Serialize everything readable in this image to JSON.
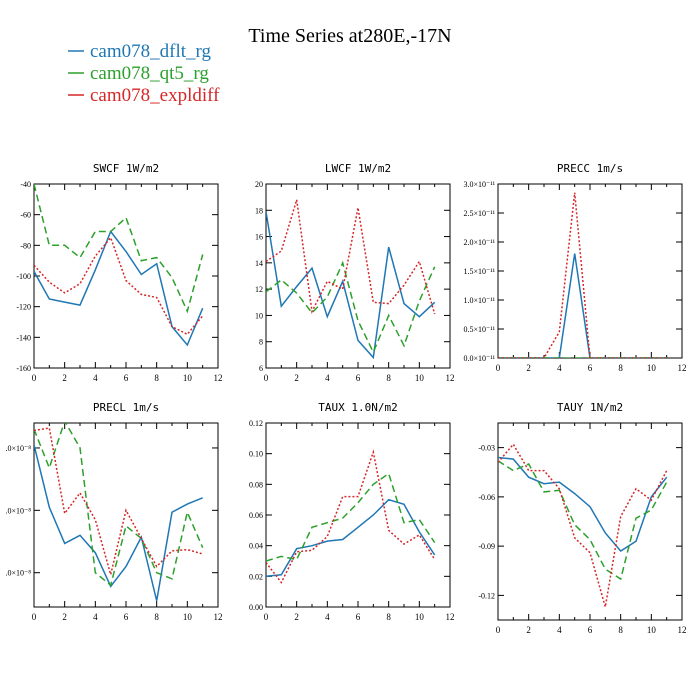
{
  "figure": {
    "title": "Time Series at280E,-17N",
    "legend": [
      {
        "label": "cam078_dflt_rg",
        "color": "#1f77b4",
        "dash": "solid"
      },
      {
        "label": "cam078_qt5_rg",
        "color": "#2ca02c",
        "dash": "dashed"
      },
      {
        "label": "cam078_expldiff",
        "color": "#d62728",
        "dash": "dotted"
      }
    ]
  },
  "chart_data": [
    {
      "type": "line",
      "title": "SWCF  1W/m2",
      "x": [
        0,
        1,
        2,
        3,
        4,
        5,
        6,
        7,
        8,
        9,
        10,
        11
      ],
      "xlim": [
        0,
        12
      ],
      "ylim": [
        -160,
        -40
      ],
      "xticks": [
        0,
        2,
        4,
        6,
        8,
        10,
        12
      ],
      "yticks": [
        -160,
        -140,
        -120,
        -100,
        -80,
        -60,
        -40
      ],
      "yticklabels": [
        "-160",
        "-140",
        "-120",
        "-100",
        "-80",
        "-60",
        "-40"
      ],
      "series": [
        {
          "name": "cam078_dflt_rg",
          "values": [
            -97,
            -115,
            -117,
            -119,
            -96,
            -71,
            -84,
            -99,
            -92,
            -133,
            -145,
            -121
          ]
        },
        {
          "name": "cam078_qt5_rg",
          "values": [
            -40,
            -80,
            -80,
            -88,
            -71,
            -71,
            -62,
            -90,
            -88,
            -101,
            -123,
            -86
          ]
        },
        {
          "name": "cam078_expldiff",
          "values": [
            -93,
            -104,
            -111,
            -105,
            -87,
            -75,
            -103,
            -112,
            -114,
            -133,
            -138,
            -126
          ]
        }
      ]
    },
    {
      "type": "line",
      "title": "LWCF  1W/m2",
      "x": [
        0,
        1,
        2,
        3,
        4,
        5,
        6,
        7,
        8,
        9,
        10,
        11
      ],
      "xlim": [
        0,
        12
      ],
      "ylim": [
        6,
        20
      ],
      "xticks": [
        0,
        2,
        4,
        6,
        8,
        10,
        12
      ],
      "yticks": [
        6,
        8,
        10,
        12,
        14,
        16,
        18,
        20
      ],
      "yticklabels": [
        "6",
        "8",
        "10",
        "12",
        "14",
        "16",
        "18",
        "20"
      ],
      "series": [
        {
          "name": "cam078_dflt_rg",
          "values": [
            17.9,
            10.7,
            12.2,
            13.6,
            9.9,
            12.6,
            8.1,
            6.8,
            15.2,
            10.9,
            9.9,
            11
          ]
        },
        {
          "name": "cam078_qt5_rg",
          "values": [
            11.8,
            12.7,
            11.7,
            10.2,
            11.4,
            14,
            9.6,
            7.2,
            10,
            7.7,
            11.1,
            13.7
          ]
        },
        {
          "name": "cam078_expldiff",
          "values": [
            14.1,
            14.9,
            18.8,
            10.3,
            12.6,
            12,
            18.2,
            11,
            10.9,
            12.3,
            14.1,
            10.1
          ]
        }
      ]
    },
    {
      "type": "line",
      "title": "PRECC  1m/s",
      "x": [
        0,
        1,
        2,
        3,
        4,
        5,
        6,
        7,
        8,
        9,
        10,
        11
      ],
      "xlim": [
        0,
        12
      ],
      "ylim": [
        0,
        3e-11
      ],
      "xticks": [
        0,
        2,
        4,
        6,
        8,
        10,
        12
      ],
      "yticks": [
        0,
        5e-12,
        1e-11,
        1.5e-11,
        2e-11,
        2.5e-11,
        3e-11
      ],
      "yticklabels": [
        "0.0×10⁻¹¹",
        "0.5×10⁻¹¹",
        "1.0×10⁻¹¹",
        "1.5×10⁻¹¹",
        "2.0×10⁻¹¹",
        "2.5×10⁻¹¹",
        "3.0×10⁻¹¹"
      ],
      "series": [
        {
          "name": "cam078_dflt_rg",
          "values": [
            0,
            0,
            0,
            0,
            0,
            1.8e-11,
            0,
            0,
            0,
            0,
            0,
            0
          ]
        },
        {
          "name": "cam078_qt5_rg",
          "values": [
            0,
            0,
            0,
            0,
            0,
            0,
            0,
            0,
            0,
            0,
            0,
            0
          ]
        },
        {
          "name": "cam078_expldiff",
          "values": [
            0,
            0,
            0,
            0,
            4.5e-12,
            2.85e-11,
            0,
            0,
            0,
            0,
            0,
            0
          ]
        }
      ]
    },
    {
      "type": "line",
      "title": "PRECL  1m/s",
      "x": [
        0,
        1,
        2,
        3,
        4,
        5,
        6,
        7,
        8,
        9,
        10,
        11
      ],
      "xlim": [
        0,
        12
      ],
      "ylim": [
        4.5e-09,
        3.4e-08
      ],
      "xticks": [
        0,
        2,
        4,
        6,
        8,
        10,
        12
      ],
      "yticks": [
        1e-08,
        2e-08,
        3e-08
      ],
      "yticklabels": [
        ".0×10⁻⁸",
        ".0×10⁻⁸",
        ".0×10⁻⁸"
      ],
      "series": [
        {
          "name": "cam078_dflt_rg",
          "values": [
            3.05e-08,
            2.05e-08,
            1.47e-08,
            1.6e-08,
            1.32e-08,
            7.8e-09,
            1.1e-08,
            1.57e-08,
            5.5e-09,
            1.97e-08,
            2.1e-08,
            2.2e-08
          ]
        },
        {
          "name": "cam078_qt5_rg",
          "values": [
            3.3e-08,
            2.68e-08,
            3.43e-08,
            3e-08,
            1e-08,
            8e-09,
            1.75e-08,
            1.55e-08,
            1e-08,
            9e-09,
            1.97e-08,
            1.4e-08
          ]
        },
        {
          "name": "cam078_expldiff",
          "values": [
            3.28e-08,
            3.32e-08,
            1.95e-08,
            2.28e-08,
            1.85e-08,
            9.7e-09,
            2e-08,
            1.55e-08,
            1.1e-08,
            1.35e-08,
            1.37e-08,
            1.3e-08
          ]
        }
      ]
    },
    {
      "type": "line",
      "title": "TAUX  1.0N/m2",
      "x": [
        0,
        1,
        2,
        3,
        4,
        5,
        6,
        7,
        8,
        9,
        10,
        11
      ],
      "xlim": [
        0,
        12
      ],
      "ylim": [
        0,
        0.12
      ],
      "xticks": [
        0,
        2,
        4,
        6,
        8,
        10,
        12
      ],
      "yticks": [
        0,
        0.02,
        0.04,
        0.06,
        0.08,
        0.1,
        0.12
      ],
      "yticklabels": [
        "0.00",
        "0.02",
        "0.04",
        "0.06",
        "0.08",
        "0.10",
        "0.12"
      ],
      "series": [
        {
          "name": "cam078_dflt_rg",
          "values": [
            0.02,
            0.021,
            0.038,
            0.04,
            0.043,
            0.044,
            0.052,
            0.06,
            0.07,
            0.067,
            0.049,
            0.034
          ]
        },
        {
          "name": "cam078_qt5_rg",
          "values": [
            0.03,
            0.033,
            0.031,
            0.052,
            0.055,
            0.058,
            0.068,
            0.08,
            0.087,
            0.055,
            0.057,
            0.042
          ]
        },
        {
          "name": "cam078_expldiff",
          "values": [
            0.029,
            0.016,
            0.036,
            0.037,
            0.046,
            0.072,
            0.072,
            0.101,
            0.05,
            0.041,
            0.047,
            0.031
          ]
        }
      ]
    },
    {
      "type": "line",
      "title": "TAUY  1N/m2",
      "x": [
        0,
        1,
        2,
        3,
        4,
        5,
        6,
        7,
        8,
        9,
        10,
        11
      ],
      "xlim": [
        0,
        12
      ],
      "ylim": [
        -0.135,
        -0.015
      ],
      "xticks": [
        0,
        2,
        4,
        6,
        8,
        10,
        12
      ],
      "yticks": [
        -0.12,
        -0.09,
        -0.06,
        -0.03
      ],
      "yticklabels": [
        "-0.12",
        "-0.09",
        "-0.06",
        "-0.03"
      ],
      "series": [
        {
          "name": "cam078_dflt_rg",
          "values": [
            -0.036,
            -0.037,
            -0.048,
            -0.052,
            -0.051,
            -0.058,
            -0.066,
            -0.082,
            -0.093,
            -0.087,
            -0.06,
            -0.048
          ]
        },
        {
          "name": "cam078_qt5_rg",
          "values": [
            -0.038,
            -0.044,
            -0.04,
            -0.057,
            -0.056,
            -0.077,
            -0.086,
            -0.104,
            -0.11,
            -0.073,
            -0.068,
            -0.051
          ]
        },
        {
          "name": "cam078_expldiff",
          "values": [
            -0.039,
            -0.028,
            -0.044,
            -0.044,
            -0.055,
            -0.085,
            -0.094,
            -0.127,
            -0.072,
            -0.055,
            -0.062,
            -0.044
          ]
        }
      ]
    }
  ]
}
